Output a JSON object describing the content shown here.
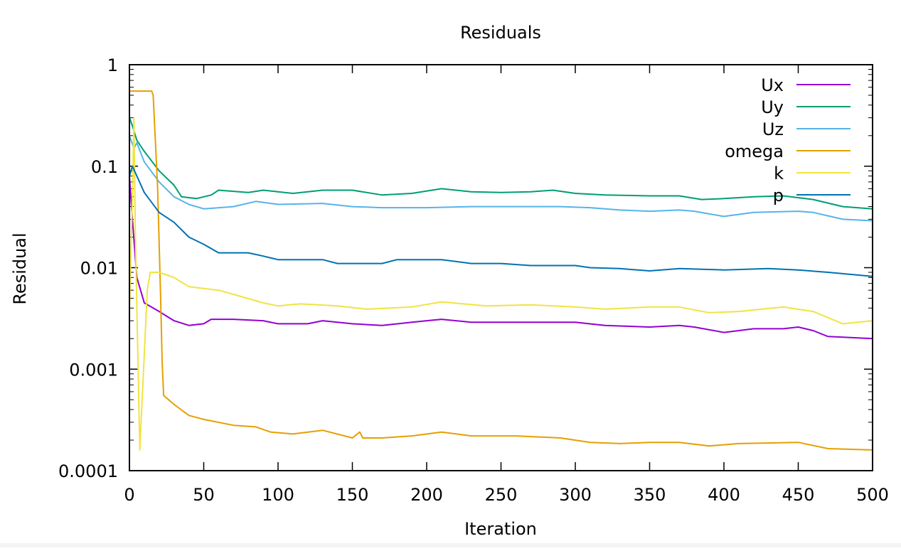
{
  "chart_data": {
    "type": "line",
    "title": "Residuals",
    "xlabel": "Iteration",
    "ylabel": "Residual",
    "xlim": [
      0,
      500
    ],
    "ylim": [
      0.0001,
      1
    ],
    "yscale": "log",
    "xticks": [
      0,
      50,
      100,
      150,
      200,
      250,
      300,
      350,
      400,
      450,
      500
    ],
    "xtick_labels": [
      "0",
      "50",
      "100",
      "150",
      "200",
      "250",
      "300",
      "350",
      "400",
      "450",
      "500"
    ],
    "yticks": [
      0.0001,
      0.001,
      0.01,
      0.1,
      1
    ],
    "ytick_labels": [
      "0.0001",
      "0.001",
      "0.01",
      "0.1",
      "1"
    ],
    "grid": false,
    "legend_position": "top-right",
    "series": [
      {
        "name": "Ux",
        "color": "#9400d3",
        "points": [
          [
            0,
            0.08
          ],
          [
            2,
            0.03
          ],
          [
            5,
            0.008
          ],
          [
            10,
            0.0045
          ],
          [
            20,
            0.0037
          ],
          [
            30,
            0.003
          ],
          [
            40,
            0.0027
          ],
          [
            50,
            0.0028
          ],
          [
            55,
            0.0031
          ],
          [
            70,
            0.0031
          ],
          [
            90,
            0.003
          ],
          [
            100,
            0.0028
          ],
          [
            120,
            0.0028
          ],
          [
            130,
            0.003
          ],
          [
            150,
            0.0028
          ],
          [
            170,
            0.0027
          ],
          [
            190,
            0.0029
          ],
          [
            200,
            0.003
          ],
          [
            210,
            0.0031
          ],
          [
            230,
            0.0029
          ],
          [
            250,
            0.0029
          ],
          [
            270,
            0.0029
          ],
          [
            300,
            0.0029
          ],
          [
            320,
            0.0027
          ],
          [
            350,
            0.0026
          ],
          [
            370,
            0.0027
          ],
          [
            380,
            0.0026
          ],
          [
            400,
            0.0023
          ],
          [
            420,
            0.0025
          ],
          [
            440,
            0.0025
          ],
          [
            450,
            0.0026
          ],
          [
            460,
            0.0024
          ],
          [
            470,
            0.0021
          ],
          [
            500,
            0.002
          ]
        ]
      },
      {
        "name": "Uy",
        "color": "#009e73",
        "points": [
          [
            0,
            0.3
          ],
          [
            2,
            0.25
          ],
          [
            5,
            0.18
          ],
          [
            10,
            0.14
          ],
          [
            20,
            0.09
          ],
          [
            30,
            0.065
          ],
          [
            35,
            0.05
          ],
          [
            45,
            0.048
          ],
          [
            55,
            0.052
          ],
          [
            60,
            0.058
          ],
          [
            80,
            0.055
          ],
          [
            90,
            0.058
          ],
          [
            100,
            0.056
          ],
          [
            110,
            0.054
          ],
          [
            130,
            0.058
          ],
          [
            150,
            0.058
          ],
          [
            170,
            0.052
          ],
          [
            190,
            0.054
          ],
          [
            210,
            0.06
          ],
          [
            230,
            0.056
          ],
          [
            250,
            0.055
          ],
          [
            270,
            0.056
          ],
          [
            285,
            0.058
          ],
          [
            300,
            0.054
          ],
          [
            320,
            0.052
          ],
          [
            350,
            0.051
          ],
          [
            370,
            0.051
          ],
          [
            385,
            0.047
          ],
          [
            400,
            0.048
          ],
          [
            420,
            0.05
          ],
          [
            440,
            0.051
          ],
          [
            460,
            0.047
          ],
          [
            480,
            0.04
          ],
          [
            500,
            0.038
          ]
        ]
      },
      {
        "name": "Uz",
        "color": "#56b4e9",
        "points": [
          [
            0,
            0.2
          ],
          [
            3,
            0.15
          ],
          [
            5,
            0.17
          ],
          [
            10,
            0.11
          ],
          [
            20,
            0.07
          ],
          [
            30,
            0.05
          ],
          [
            40,
            0.042
          ],
          [
            50,
            0.038
          ],
          [
            70,
            0.04
          ],
          [
            85,
            0.045
          ],
          [
            100,
            0.042
          ],
          [
            130,
            0.043
          ],
          [
            150,
            0.04
          ],
          [
            170,
            0.039
          ],
          [
            200,
            0.039
          ],
          [
            230,
            0.04
          ],
          [
            250,
            0.04
          ],
          [
            270,
            0.04
          ],
          [
            290,
            0.04
          ],
          [
            310,
            0.039
          ],
          [
            330,
            0.037
          ],
          [
            350,
            0.036
          ],
          [
            370,
            0.037
          ],
          [
            380,
            0.036
          ],
          [
            400,
            0.032
          ],
          [
            420,
            0.035
          ],
          [
            450,
            0.036
          ],
          [
            460,
            0.035
          ],
          [
            480,
            0.03
          ],
          [
            500,
            0.029
          ]
        ]
      },
      {
        "name": "omega",
        "color": "#e69f00",
        "points": [
          [
            0,
            0.55
          ],
          [
            8,
            0.55
          ],
          [
            15,
            0.55
          ],
          [
            16,
            0.5
          ],
          [
            19,
            0.06
          ],
          [
            21,
            0.005
          ],
          [
            22,
            0.0012
          ],
          [
            23,
            0.00055
          ],
          [
            30,
            0.00045
          ],
          [
            40,
            0.00035
          ],
          [
            50,
            0.00032
          ],
          [
            70,
            0.00028
          ],
          [
            85,
            0.00027
          ],
          [
            95,
            0.00024
          ],
          [
            110,
            0.00023
          ],
          [
            130,
            0.00025
          ],
          [
            150,
            0.00021
          ],
          [
            155,
            0.00024
          ],
          [
            157,
            0.00021
          ],
          [
            170,
            0.00021
          ],
          [
            190,
            0.00022
          ],
          [
            210,
            0.00024
          ],
          [
            230,
            0.00022
          ],
          [
            260,
            0.00022
          ],
          [
            290,
            0.00021
          ],
          [
            310,
            0.00019
          ],
          [
            330,
            0.000185
          ],
          [
            350,
            0.00019
          ],
          [
            370,
            0.00019
          ],
          [
            390,
            0.000175
          ],
          [
            410,
            0.000185
          ],
          [
            450,
            0.00019
          ],
          [
            470,
            0.000165
          ],
          [
            500,
            0.00016
          ]
        ]
      },
      {
        "name": "k",
        "color": "#f0e442",
        "points": [
          [
            0,
            0.004
          ],
          [
            2,
            0.05
          ],
          [
            3,
            0.3
          ],
          [
            4,
            0.02
          ],
          [
            7,
            0.00016
          ],
          [
            12,
            0.006
          ],
          [
            14,
            0.009
          ],
          [
            20,
            0.009
          ],
          [
            30,
            0.008
          ],
          [
            40,
            0.0065
          ],
          [
            60,
            0.006
          ],
          [
            75,
            0.0052
          ],
          [
            90,
            0.0045
          ],
          [
            100,
            0.0042
          ],
          [
            115,
            0.0044
          ],
          [
            140,
            0.0042
          ],
          [
            160,
            0.0039
          ],
          [
            190,
            0.0041
          ],
          [
            210,
            0.0046
          ],
          [
            240,
            0.0042
          ],
          [
            270,
            0.0043
          ],
          [
            300,
            0.0041
          ],
          [
            320,
            0.0039
          ],
          [
            350,
            0.0041
          ],
          [
            370,
            0.0041
          ],
          [
            390,
            0.0036
          ],
          [
            410,
            0.0037
          ],
          [
            440,
            0.0041
          ],
          [
            460,
            0.0037
          ],
          [
            480,
            0.0028
          ],
          [
            500,
            0.003
          ]
        ]
      },
      {
        "name": "p",
        "color": "#0072b2",
        "points": [
          [
            0,
            0.08
          ],
          [
            2,
            0.1
          ],
          [
            10,
            0.055
          ],
          [
            20,
            0.035
          ],
          [
            30,
            0.028
          ],
          [
            40,
            0.02
          ],
          [
            50,
            0.017
          ],
          [
            60,
            0.014
          ],
          [
            80,
            0.014
          ],
          [
            90,
            0.013
          ],
          [
            100,
            0.012
          ],
          [
            130,
            0.012
          ],
          [
            140,
            0.011
          ],
          [
            170,
            0.011
          ],
          [
            180,
            0.012
          ],
          [
            210,
            0.012
          ],
          [
            230,
            0.011
          ],
          [
            250,
            0.011
          ],
          [
            270,
            0.0105
          ],
          [
            300,
            0.0105
          ],
          [
            310,
            0.01
          ],
          [
            330,
            0.0098
          ],
          [
            350,
            0.0093
          ],
          [
            370,
            0.0098
          ],
          [
            400,
            0.0095
          ],
          [
            430,
            0.0098
          ],
          [
            450,
            0.0095
          ],
          [
            470,
            0.009
          ],
          [
            500,
            0.0082
          ]
        ]
      }
    ]
  }
}
